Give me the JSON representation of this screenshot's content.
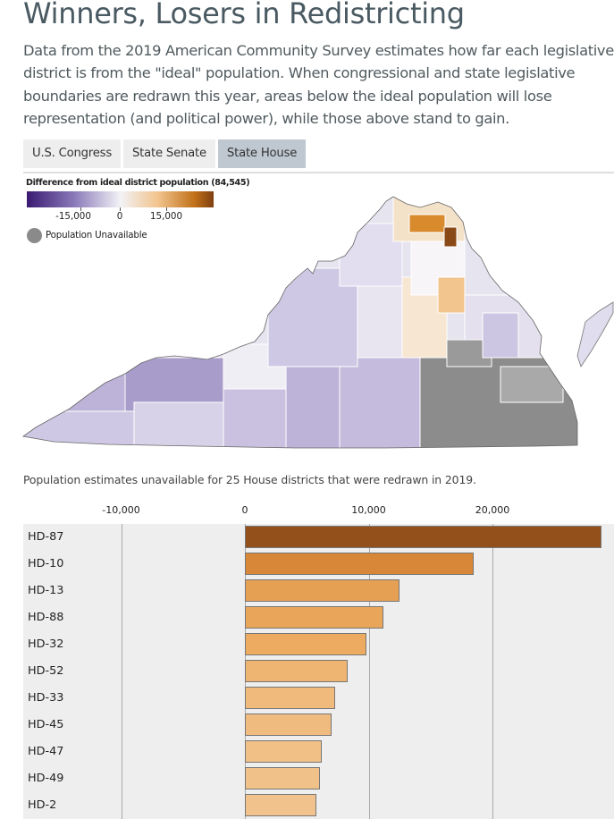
{
  "page": {
    "title": "Winners, Losers in Redistricting",
    "subtitle": "Data from the 2019 American Community Survey estimates how far each legislative district is from the \"ideal\" population. When congressional and state legislative boundaries are redrawn this year, areas below the ideal population will lose representation (and political power), while those above stand to gain."
  },
  "tabs": [
    {
      "label": "U.S. Congress",
      "active": false
    },
    {
      "label": "State Senate",
      "active": false
    },
    {
      "label": "State House",
      "active": true
    }
  ],
  "legend": {
    "title": "Difference from ideal district population (84,545)",
    "ticks": [
      "-15,000",
      "0",
      "15,000"
    ],
    "unavailable_label": "Population Unavailable",
    "colors": {
      "negative": "#3b1a72",
      "neutral": "#f2f2f6",
      "positive": "#7e3f10",
      "unavailable": "#8a8a8a"
    }
  },
  "note": "Population estimates unavailable for 25 House districts that were redrawn in 2019.",
  "chart_data": {
    "type": "bar",
    "orientation": "horizontal",
    "categories": [
      "HD-87",
      "HD-10",
      "HD-13",
      "HD-88",
      "HD-32",
      "HD-52",
      "HD-33",
      "HD-45",
      "HD-47",
      "HD-49",
      "HD-2"
    ],
    "values": [
      28800,
      18500,
      12500,
      11200,
      9800,
      8300,
      7300,
      7000,
      6200,
      6100,
      5800
    ],
    "xlim": [
      -10000,
      28000
    ],
    "x_ticks": [
      -10000,
      0,
      10000,
      20000
    ],
    "x_tick_labels": [
      "-10,000",
      "0",
      "10,000",
      "20,000"
    ],
    "grid": true
  }
}
